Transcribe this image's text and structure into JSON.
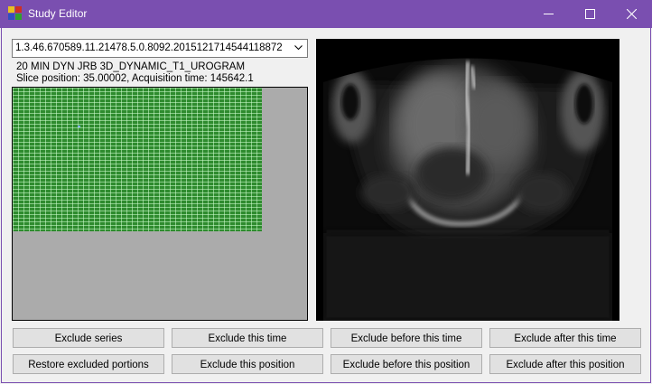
{
  "window": {
    "title": "Study Editor"
  },
  "series_select": {
    "value": "1.3.46.670589.11.21478.5.0.8092.2015121714544118872"
  },
  "series_description": "20 MIN DYN JRB 3D_DYNAMIC_T1_UROGRAM",
  "slice_info": "Slice position: 35.00002, Acquisition time: 145642.1",
  "buttons": {
    "exclude_series": "Exclude series",
    "exclude_this_time": "Exclude this time",
    "exclude_before_time": "Exclude before this time",
    "exclude_after_time": "Exclude after this time",
    "restore_excluded": "Restore excluded portions",
    "exclude_this_position": "Exclude this position",
    "exclude_before_position": "Exclude before this position",
    "exclude_after_position": "Exclude after this position"
  },
  "colors": {
    "titlebar": "#7a4fb0",
    "grid_included": "#2e8b2e",
    "grid_background": "#ababab"
  }
}
